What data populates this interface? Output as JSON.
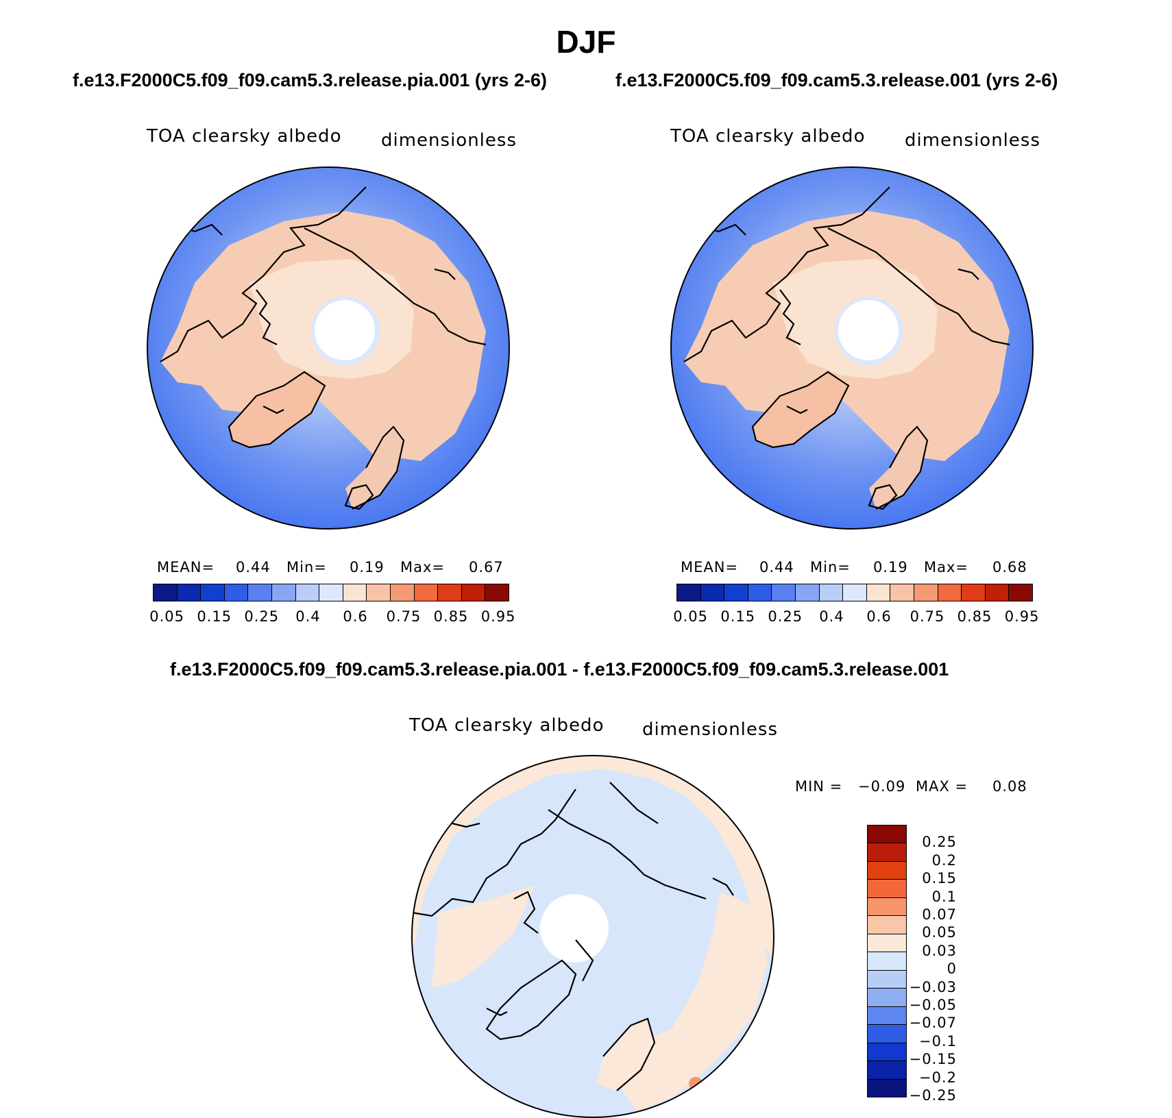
{
  "title": "DJF",
  "panels": [
    {
      "case": "f.e13.F2000C5.f09_f09.cam5.3.release.pia.001 (yrs 2-6)",
      "variable": "TOA clearsky albedo",
      "units": "dimensionless",
      "stats": {
        "mean_label": "MEAN=",
        "mean": "0.44",
        "min_label": "Min=",
        "min": "0.19",
        "max_label": "Max=",
        "max": "0.67"
      }
    },
    {
      "case": "f.e13.F2000C5.f09_f09.cam5.3.release.001 (yrs 2-6)",
      "variable": "TOA clearsky albedo",
      "units": "dimensionless",
      "stats": {
        "mean_label": "MEAN=",
        "mean": "0.44",
        "min_label": "Min=",
        "min": "0.19",
        "max_label": "Max=",
        "max": "0.68"
      }
    }
  ],
  "diff_panel": {
    "case": "f.e13.F2000C5.f09_f09.cam5.3.release.pia.001 - f.e13.F2000C5.f09_f09.cam5.3.release.001",
    "variable": "TOA clearsky albedo",
    "units": "dimensionless",
    "min_label": "MIN =",
    "min": "−0.09",
    "max_label": "MAX =",
    "max": "0.08"
  },
  "abs_colorbar": {
    "colors": [
      "#0b1a87",
      "#0a2ab0",
      "#1140d0",
      "#2f5de8",
      "#5a80f0",
      "#88a6f4",
      "#b8cdf8",
      "#dde9fb",
      "#fbe3d2",
      "#f8c3a8",
      "#f49a74",
      "#ef6a3e",
      "#e03c18",
      "#c02008",
      "#8a0a03"
    ],
    "labels": [
      "0.05",
      "0.15",
      "0.25",
      "0.4",
      "0.6",
      "0.75",
      "0.85",
      "0.95"
    ]
  },
  "diff_colorbar": {
    "colors_top_to_bottom": [
      "#8a0a03",
      "#b91e0a",
      "#e3400f",
      "#f3683a",
      "#f6956c",
      "#f9c6a8",
      "#fbe8d8",
      "#d7e6fb",
      "#b6cdf6",
      "#8eaef2",
      "#5d86ee",
      "#2f5de6",
      "#1138cf",
      "#0a22a8",
      "#0b157f"
    ],
    "labels": [
      "0.25",
      "0.2",
      "0.15",
      "0.1",
      "0.07",
      "0.05",
      "0.03",
      "0",
      "−0.03",
      "−0.05",
      "−0.07",
      "−0.1",
      "−0.15",
      "−0.2",
      "−0.25"
    ]
  },
  "map_fill": {
    "ocean_far": "#3d6ef0",
    "ocean_mid": "#6e94f2",
    "ocean_near": "#a7c0f6",
    "land": "#f6cdb4",
    "ice": "#fbe3d2",
    "pole_ring": "#dbe8fc",
    "diff_base": "#d7e6fb",
    "diff_pos": "#fbe8d8",
    "diff_hot": "#f6956c"
  }
}
